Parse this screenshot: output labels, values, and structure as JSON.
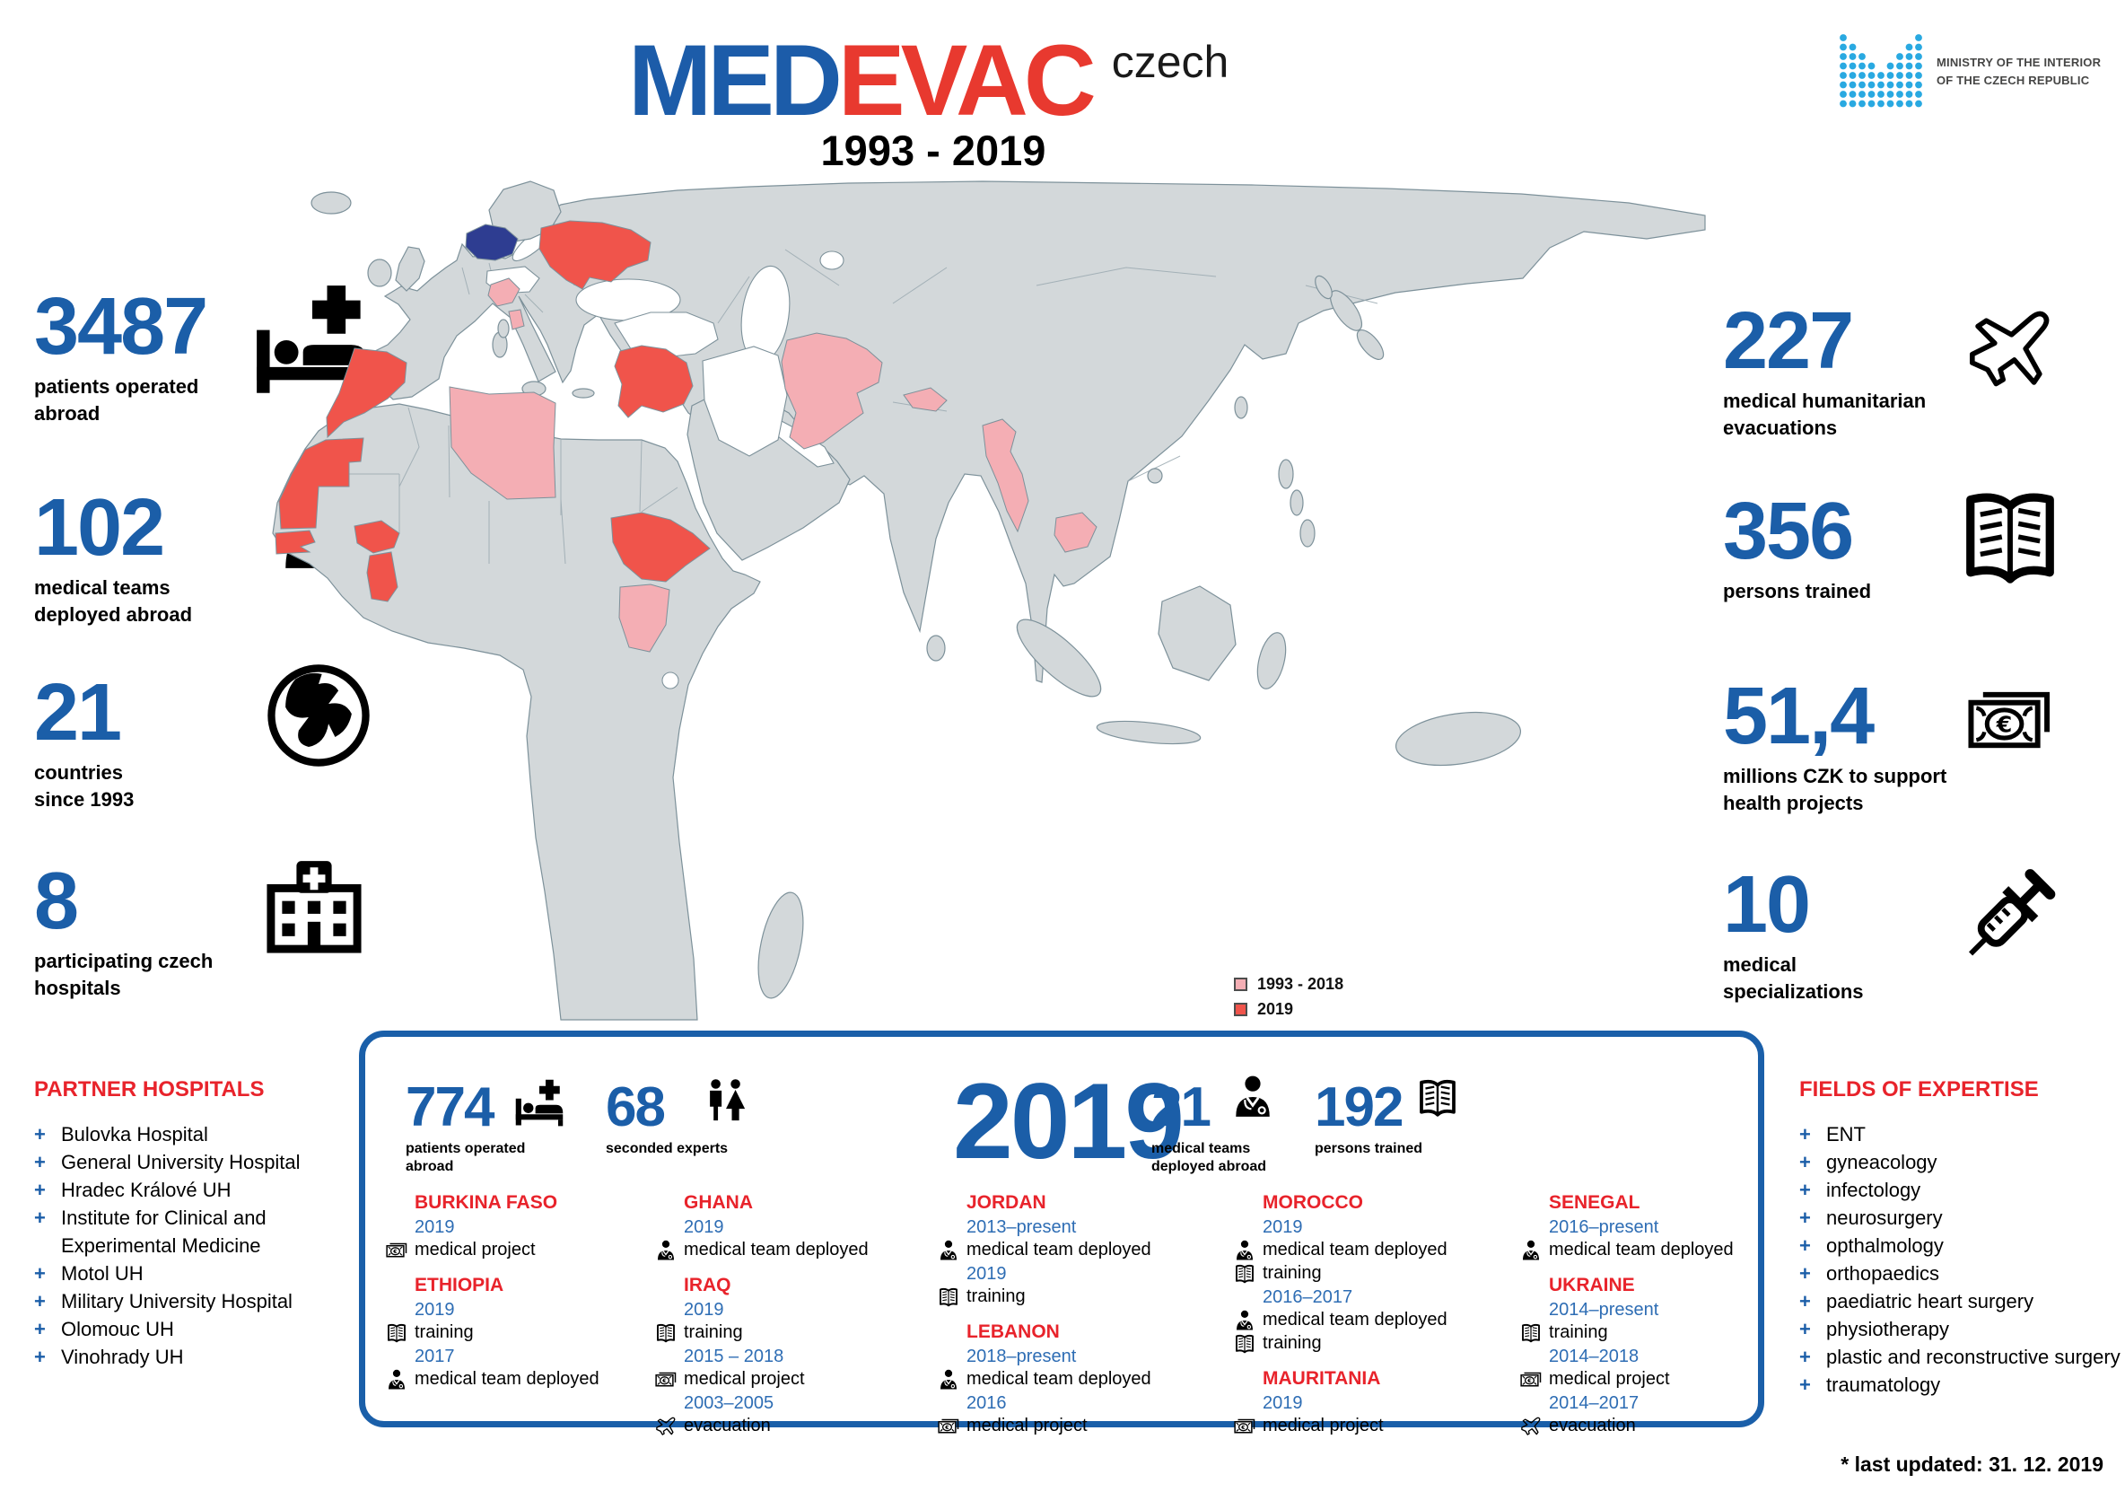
{
  "header": {
    "logo_med": "MED",
    "logo_evac": "EVAC",
    "logo_suffix": "czech",
    "subtitle": "1993 - 2019"
  },
  "ministry": {
    "name_line1": "MINISTRY OF THE INTERIOR",
    "name_line2": "OF THE CZECH REPUBLIC",
    "dot_color": "#29a9e1",
    "dot_pattern": [
      "100000001",
      "110000011",
      "111000111",
      "111101111",
      "111111111",
      "111111111",
      "111111111",
      "111111111"
    ]
  },
  "stats_left": [
    {
      "value": "3487",
      "label": "patients operated abroad",
      "icon": "patient-bed-icon"
    },
    {
      "value": "102",
      "label": "medical teams deployed abroad",
      "icon": "doctor-icon"
    },
    {
      "value": "21",
      "label": "countries since 1993",
      "icon": "globe-icon"
    },
    {
      "value": "8",
      "label": "participating czech hospitals",
      "icon": "hospital-icon"
    }
  ],
  "stats_right": [
    {
      "value": "227",
      "label": "medical humanitarian evacuations",
      "icon": "plane-icon"
    },
    {
      "value": "356",
      "label": "persons trained",
      "icon": "book-icon"
    },
    {
      "value": "51,4",
      "label": "millions CZK to support health projects",
      "icon": "banknote-icon"
    },
    {
      "value": "10",
      "label": "medical specializations",
      "icon": "syringe-icon"
    }
  ],
  "map": {
    "legend": [
      {
        "label": "1993 - 2018",
        "color": "#f4aeb4"
      },
      {
        "label": "2019",
        "color": "#f0544b"
      }
    ],
    "colors": {
      "land": "#d3d8da",
      "border": "#7d919a",
      "sea": "#ffffff",
      "czech_republic": "#2e3d91"
    }
  },
  "summary_2019": {
    "year": "2019",
    "stats": [
      {
        "value": "774",
        "label": "patients operated abroad",
        "icon": "patient-bed-icon"
      },
      {
        "value": "68",
        "label": "seconded experts",
        "icon": "man-woman-icon"
      },
      {
        "value": "21",
        "label": "medical teams deployed abroad",
        "icon": "doctor-icon"
      },
      {
        "value": "192",
        "label": "persons trained",
        "icon": "book-icon"
      }
    ],
    "countries": [
      {
        "name": "BURKINA FASO",
        "entries": [
          {
            "period": "2019",
            "activities": [
              {
                "icon": "banknote-icon",
                "label": "medical project"
              }
            ]
          }
        ]
      },
      {
        "name": "ETHIOPIA",
        "entries": [
          {
            "period": "2019",
            "activities": [
              {
                "icon": "book-icon",
                "label": "training"
              }
            ]
          },
          {
            "period": "2017",
            "activities": [
              {
                "icon": "doctor-icon",
                "label": "medical team deployed"
              }
            ]
          }
        ]
      },
      {
        "name": "GHANA",
        "entries": [
          {
            "period": "2019",
            "activities": [
              {
                "icon": "doctor-icon",
                "label": "medical team deployed"
              }
            ]
          }
        ]
      },
      {
        "name": "IRAQ",
        "entries": [
          {
            "period": "2019",
            "activities": [
              {
                "icon": "book-icon",
                "label": "training"
              }
            ]
          },
          {
            "period": "2015 – 2018",
            "activities": [
              {
                "icon": "banknote-icon",
                "label": "medical project"
              }
            ]
          },
          {
            "period": "2003–2005",
            "activities": [
              {
                "icon": "plane-icon",
                "label": "evacuation"
              }
            ]
          }
        ]
      },
      {
        "name": "JORDAN",
        "entries": [
          {
            "period": "2013–present",
            "activities": [
              {
                "icon": "doctor-icon",
                "label": "medical team deployed"
              }
            ]
          },
          {
            "period": "2019",
            "activities": [
              {
                "icon": "book-icon",
                "label": "training"
              }
            ]
          }
        ]
      },
      {
        "name": "LEBANON",
        "entries": [
          {
            "period": "2018–present",
            "activities": [
              {
                "icon": "doctor-icon",
                "label": "medical team deployed"
              }
            ]
          },
          {
            "period": "2016",
            "activities": [
              {
                "icon": "banknote-icon",
                "label": "medical project"
              }
            ]
          }
        ]
      },
      {
        "name": "MOROCCO",
        "entries": [
          {
            "period": "2019",
            "activities": [
              {
                "icon": "doctor-icon",
                "label": "medical team deployed"
              },
              {
                "icon": "book-icon",
                "label": "training"
              }
            ]
          },
          {
            "period": "2016–2017",
            "activities": [
              {
                "icon": "doctor-icon",
                "label": "medical team deployed"
              },
              {
                "icon": "book-icon",
                "label": "training"
              }
            ]
          }
        ]
      },
      {
        "name": "MAURITANIA",
        "entries": [
          {
            "period": "2019",
            "activities": [
              {
                "icon": "banknote-icon",
                "label": "medical project"
              }
            ]
          }
        ]
      },
      {
        "name": "SENEGAL",
        "entries": [
          {
            "period": "2016–present",
            "activities": [
              {
                "icon": "doctor-icon",
                "label": "medical team deployed"
              }
            ]
          }
        ]
      },
      {
        "name": "UKRAINE",
        "entries": [
          {
            "period": "2014–present",
            "activities": [
              {
                "icon": "book-icon",
                "label": "training"
              }
            ]
          },
          {
            "period": "2014–2018",
            "activities": [
              {
                "icon": "banknote-icon",
                "label": "medical project"
              }
            ]
          },
          {
            "period": "2014–2017",
            "activities": [
              {
                "icon": "plane-icon",
                "label": "evacuation"
              }
            ]
          }
        ]
      }
    ]
  },
  "partner_hospitals": {
    "title": "PARTNER HOSPITALS",
    "items": [
      "Bulovka Hospital",
      "General University Hospital",
      "Hradec Králové UH",
      "Institute for Clinical and Experimental Medicine",
      "Motol UH",
      "Military University Hospital",
      "Olomouc UH",
      "Vinohrady UH"
    ]
  },
  "fields_of_expertise": {
    "title": "FIELDS OF EXPERTISE",
    "items": [
      "ENT",
      "gyneacology",
      "infectology",
      "neurosurgery",
      "opthalmology",
      "orthopaedics",
      "paediatric heart surgery",
      "physiotherapy",
      "plastic and reconstructive surgery",
      "traumatology"
    ]
  },
  "footer": {
    "note": "* last updated: 31. 12. 2019"
  }
}
